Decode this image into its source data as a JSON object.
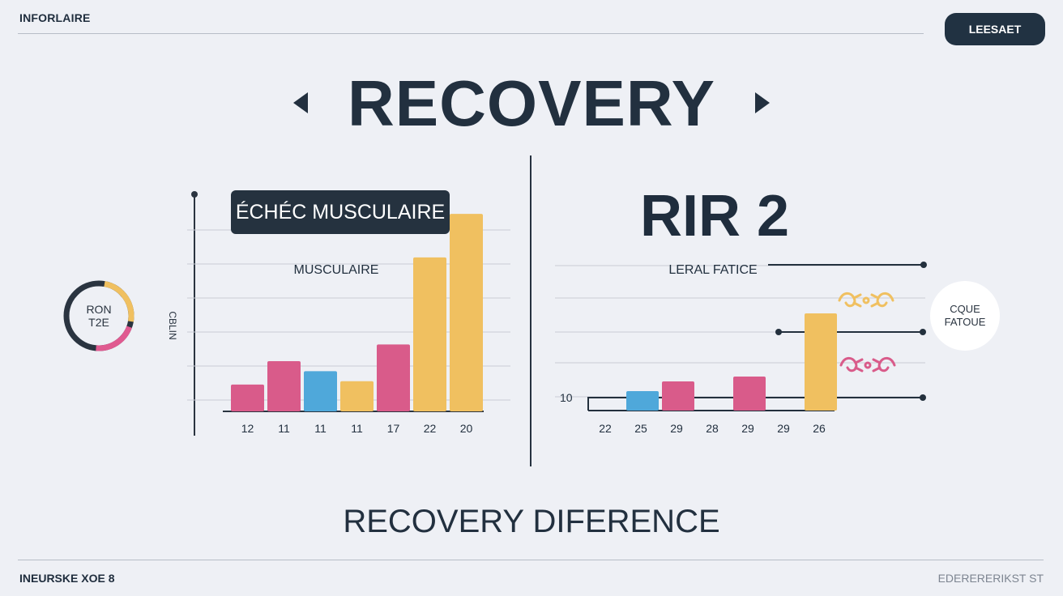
{
  "header": {
    "brand": "INFORLAIRE",
    "button_label": "LEESAET"
  },
  "title": "RECOVERY",
  "section_label": "RECOVERY DIFERENCE",
  "footer": {
    "left": "INEURSKE XOE 8",
    "right": "EDERERERIKST ST"
  },
  "ring": {
    "line1": "RON",
    "line2": "T2E",
    "colors": [
      "#2a3440",
      "#f0c060",
      "#e05a90"
    ]
  },
  "callout": {
    "line1": "CQUE",
    "line2": "FATOUE"
  },
  "colors": {
    "pink": "#d95b8a",
    "blue": "#4fa8da",
    "yellow": "#f0c060",
    "dark": "#23303d"
  },
  "icons": [
    "ornament-icon",
    "ornament-icon"
  ],
  "chart_data": [
    {
      "type": "bar",
      "title": "ÉCHÉC MUSCULAIRE",
      "subtitle": "MUSCULAIRE",
      "ylabel": "CBLIN",
      "categories": [
        "12",
        "11",
        "11",
        "11",
        "17",
        "22",
        "20"
      ],
      "values": [
        8,
        15,
        12,
        9,
        20,
        46,
        59
      ],
      "bar_colors": [
        "#d95b8a",
        "#d95b8a",
        "#4fa8da",
        "#f0c060",
        "#d95b8a",
        "#f0c060",
        "#f0c060"
      ],
      "ylim": [
        0,
        60
      ],
      "grid": true
    },
    {
      "type": "bar",
      "title": "RIR 2",
      "subtitle": "LERAL FATICE",
      "tick_label": "10",
      "categories": [
        "22",
        "25",
        "29",
        "28",
        "29",
        "29",
        "26"
      ],
      "values": [
        0,
        4,
        6,
        0,
        7,
        0,
        20
      ],
      "bar_colors": [
        "#4fa8da",
        "#4fa8da",
        "#d95b8a",
        "#d95b8a",
        "#d95b8a",
        "#f0c060",
        "#f0c060"
      ],
      "ylim": [
        0,
        20
      ],
      "grid": true
    }
  ]
}
